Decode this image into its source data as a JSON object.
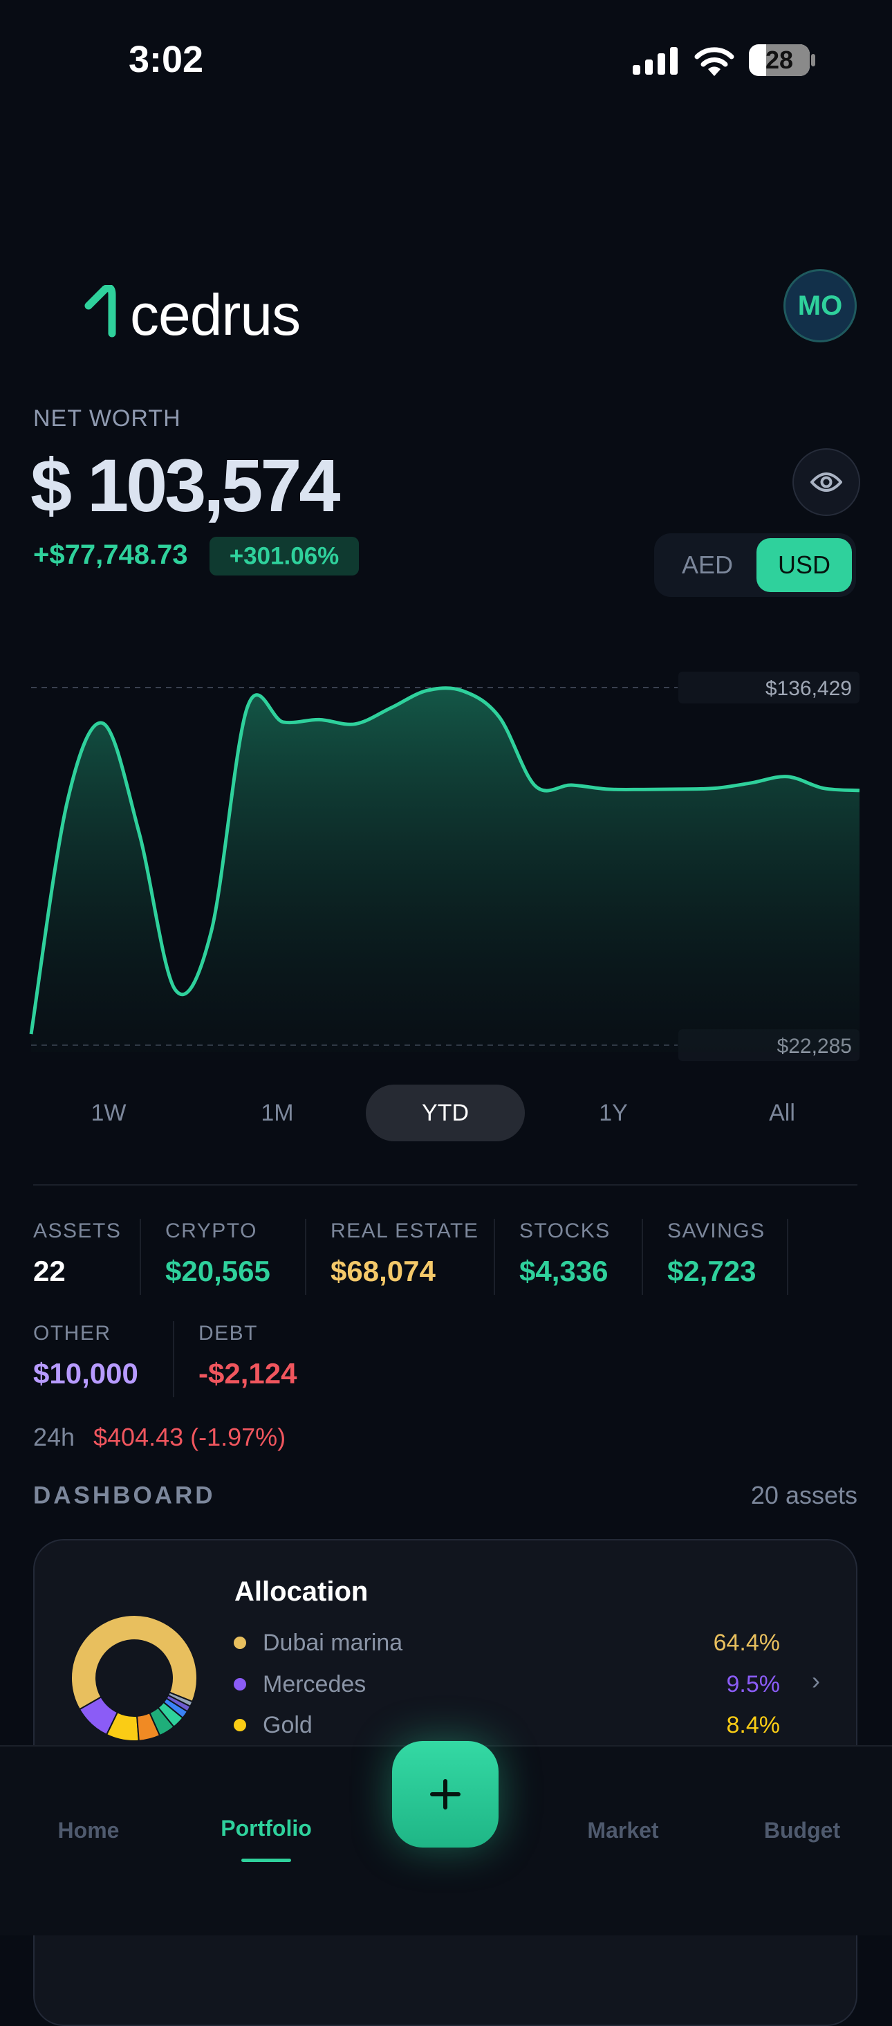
{
  "status": {
    "time": "3:02",
    "battery": "28"
  },
  "header": {
    "logo": "cedrus",
    "avatar": "MO"
  },
  "net_worth": {
    "label": "NET WORTH",
    "value": "$ 103,574",
    "change": "+$77,748.73",
    "change_pct": "+301.06%"
  },
  "currency": {
    "options": [
      "AED",
      "USD"
    ],
    "selected_index": 1
  },
  "chart": {
    "type": "line",
    "color": "#2fd19c",
    "values": [
      25827,
      99800,
      125000,
      90000,
      40000,
      58500,
      130000,
      125400,
      126200,
      124800,
      130000,
      135500,
      135300,
      127000,
      105000,
      105300,
      104000,
      103900,
      104000,
      104300,
      106000,
      108000,
      104300,
      103574
    ],
    "ylim": [
      22285,
      136429
    ],
    "yticks": [
      {
        "value": 22285,
        "label": "$22,285"
      },
      {
        "value": 136429,
        "label": "$136,429"
      }
    ]
  },
  "ranges": {
    "options": [
      "1W",
      "1M",
      "YTD",
      "1Y",
      "All"
    ],
    "selected_index": 2
  },
  "stats": [
    {
      "label": "ASSETS",
      "value": "22",
      "color": "#ffffff"
    },
    {
      "label": "CRYPTO",
      "value": "$20,565",
      "color": "#2fd19c"
    },
    {
      "label": "REAL ESTATE",
      "value": "$68,074",
      "color": "#f5c96a"
    },
    {
      "label": "STOCKS",
      "value": "$4,336",
      "color": "#2fd19c"
    },
    {
      "label": "SAVINGS",
      "value": "$2,723",
      "color": "#2fd19c"
    },
    {
      "label": "OTHER",
      "value": "$10,000",
      "color": "#b79bff"
    },
    {
      "label": "DEBT",
      "value": "-$2,124",
      "color": "#f0565e"
    }
  ],
  "change_24h": {
    "label": "24h",
    "value": "$404.43 (-1.97%)"
  },
  "dashboard": {
    "title": "DASHBOARD",
    "count": "20 assets"
  },
  "allocation": {
    "title": "Allocation",
    "items": [
      {
        "name": "Dubai marina",
        "value": 64.4,
        "value_label": "64.4%",
        "color": "#e8bf5e"
      },
      {
        "name": "Mercedes",
        "value": 9.5,
        "value_label": "9.5%",
        "color": "#8b5cf6"
      },
      {
        "name": "Gold",
        "value": 8.4,
        "value_label": "8.4%",
        "color": "#facc15"
      },
      {
        "name": null,
        "value": 5.5,
        "color": "#f08a24"
      },
      {
        "name": null,
        "value": 4.2,
        "color": "#1fae7a"
      },
      {
        "name": null,
        "value": 3.2,
        "color": "#2fd19c"
      },
      {
        "name": null,
        "value": 2.0,
        "color": "#3b82f6"
      },
      {
        "name": null,
        "value": 1.5,
        "color": "#6d5bd0"
      },
      {
        "name": null,
        "value": 1.3,
        "color": "#94a3b8"
      }
    ]
  },
  "nav": {
    "items": [
      "Home",
      "Portfolio",
      "Market",
      "Budget"
    ],
    "selected_index": 1
  }
}
